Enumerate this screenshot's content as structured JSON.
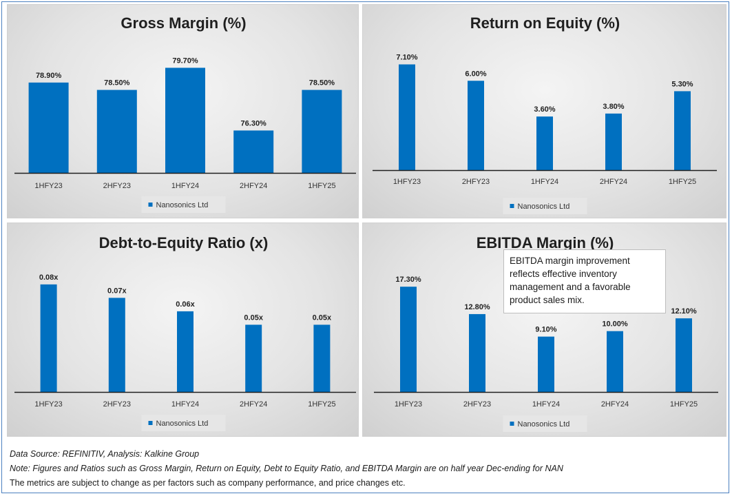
{
  "colors": {
    "bar": "#0070c0",
    "legend_bg": "#e6e6e6",
    "axis": "#1f1f1f"
  },
  "chart_data": [
    {
      "type": "bar",
      "title": "Gross Margin (%)",
      "categories": [
        "1HFY23",
        "2HFY23",
        "1HFY24",
        "2HFY24",
        "1HFY25"
      ],
      "series": [
        {
          "name": "Nanosonics Ltd",
          "values": [
            78.9,
            78.5,
            79.7,
            76.3,
            78.5
          ]
        }
      ],
      "data_labels": [
        "78.90%",
        "78.50%",
        "79.70%",
        "76.30%",
        "78.50%"
      ],
      "ylim": [
        74,
        80.5
      ],
      "legend": "bottom",
      "grid": false
    },
    {
      "type": "bar",
      "title": "Return on Equity (%)",
      "categories": [
        "1HFY23",
        "2HFY23",
        "1HFY24",
        "2HFY24",
        "1HFY25"
      ],
      "series": [
        {
          "name": "Nanosonics Ltd",
          "values": [
            7.1,
            6.0,
            3.6,
            3.8,
            5.3
          ]
        }
      ],
      "data_labels": [
        "7.10%",
        "6.00%",
        "3.60%",
        "3.80%",
        "5.30%"
      ],
      "ylim": [
        0,
        7.4
      ],
      "legend": "bottom",
      "grid": false
    },
    {
      "type": "bar",
      "title": "Debt-to-Equity Ratio (x)",
      "categories": [
        "1HFY23",
        "2HFY23",
        "1HFY24",
        "2HFY24",
        "1HFY25"
      ],
      "series": [
        {
          "name": "Nanosonics Ltd",
          "values": [
            0.08,
            0.07,
            0.06,
            0.05,
            0.05
          ]
        }
      ],
      "data_labels": [
        "0.08x",
        "0.07x",
        "0.06x",
        "0.05x",
        "0.05x"
      ],
      "ylim": [
        0,
        0.083
      ],
      "legend": "bottom",
      "grid": false
    },
    {
      "type": "bar",
      "title": "EBITDA Margin (%)",
      "categories": [
        "1HFY23",
        "2HFY23",
        "1HFY24",
        "2HFY24",
        "1HFY25"
      ],
      "series": [
        {
          "name": "Nanosonics Ltd",
          "values": [
            17.3,
            12.8,
            9.1,
            10.0,
            12.1
          ]
        }
      ],
      "data_labels": [
        "17.30%",
        "12.80%",
        "9.10%",
        "10.00%",
        "12.10%"
      ],
      "ylim": [
        0,
        18
      ],
      "legend": "bottom",
      "grid": false
    }
  ],
  "annotation": {
    "lines": [
      "EBITDA margin improvement",
      "reflects effective inventory",
      "management and a favorable",
      "product sales mix."
    ]
  },
  "footer": {
    "source": "Data Source: REFINITIV, Analysis: Kalkine Group",
    "note": "Note: Figures and Ratios such as Gross Margin, Return on Equity, Debt to Equity Ratio, and EBITDA Margin are on half year Dec-ending for NAN",
    "disclaimer": "The metrics are subject to change as per factors such as company performance, and price changes etc."
  }
}
